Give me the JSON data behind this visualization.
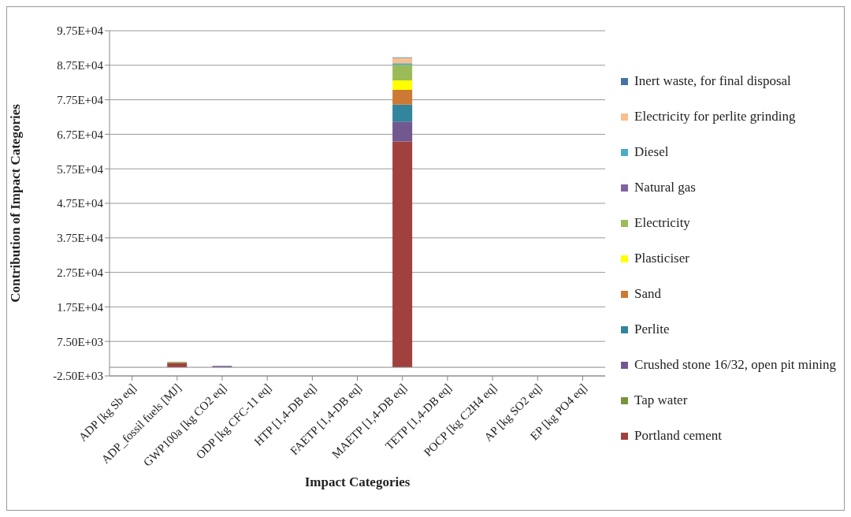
{
  "chart_data": {
    "type": "bar",
    "stacked": true,
    "xlabel": "Impact Categories",
    "ylabel": "Contribution of Impact Categories",
    "categories": [
      "ADP [kg Sb eq]",
      "ADP_fossil fuels [MJ]",
      "GWP100a [kg CO2 eq]",
      "ODP [kg CFC-11 eq]",
      "HTP [1,4-DB eq]",
      "FAETP [1,4-DB eq]",
      "MAETP [1,4-DB eq]",
      "TETP [1,4-DB eq]",
      "POCP [kg C2H4 eq]",
      "AP [kg SO2 eq]",
      "EP [kg PO4 eq]"
    ],
    "ylim": [
      -2500,
      97500
    ],
    "yticks": [
      {
        "value": -2500,
        "label": "-2.50E+03"
      },
      {
        "value": 7500,
        "label": "7.50E+03"
      },
      {
        "value": 17500,
        "label": "1.75E+04"
      },
      {
        "value": 27500,
        "label": "2.75E+04"
      },
      {
        "value": 37500,
        "label": "3.75E+04"
      },
      {
        "value": 47500,
        "label": "4.75E+04"
      },
      {
        "value": 57500,
        "label": "5.75E+04"
      },
      {
        "value": 67500,
        "label": "6.75E+04"
      },
      {
        "value": 77500,
        "label": "7.75E+04"
      },
      {
        "value": 87500,
        "label": "8.75E+04"
      },
      {
        "value": 97500,
        "label": "9.75E+04"
      }
    ],
    "grid": "y",
    "legend": "right",
    "series": [
      {
        "name": "Portland cement",
        "color": "#a0413e",
        "values": [
          0,
          1300,
          0,
          0,
          0,
          0,
          65400,
          0,
          0,
          0,
          0
        ]
      },
      {
        "name": "Tap water",
        "color": "#77933c",
        "values": [
          0,
          0,
          0,
          0,
          0,
          0,
          0,
          0,
          0,
          0,
          0
        ]
      },
      {
        "name": "Crushed stone 16/32, open pit mining",
        "color": "#71588f",
        "values": [
          0,
          0,
          400,
          0,
          0,
          0,
          5800,
          0,
          0,
          0,
          0
        ]
      },
      {
        "name": "Perlite",
        "color": "#31859c",
        "values": [
          0,
          0,
          0,
          0,
          0,
          0,
          4900,
          0,
          0,
          0,
          0
        ]
      },
      {
        "name": "Sand",
        "color": "#cc7a33",
        "values": [
          0,
          0,
          0,
          0,
          0,
          0,
          4300,
          0,
          0,
          0,
          0
        ]
      },
      {
        "name": "Plasticiser",
        "color": "#ffff00",
        "values": [
          0,
          0,
          0,
          0,
          0,
          0,
          2700,
          0,
          0,
          0,
          0
        ]
      },
      {
        "name": "Electricity",
        "color": "#9bbb59",
        "values": [
          0,
          300,
          0,
          0,
          0,
          0,
          4500,
          0,
          0,
          0,
          0
        ]
      },
      {
        "name": "Natural gas",
        "color": "#8064a2",
        "values": [
          0,
          0,
          0,
          0,
          0,
          0,
          0,
          0,
          0,
          0,
          0
        ]
      },
      {
        "name": "Diesel",
        "color": "#4bacc6",
        "values": [
          0,
          0,
          0,
          0,
          0,
          0,
          500,
          0,
          0,
          0,
          0
        ]
      },
      {
        "name": "Electricity for perlite grinding",
        "color": "#f9be8f",
        "values": [
          0,
          0,
          0,
          0,
          0,
          0,
          1500,
          0,
          0,
          0,
          0
        ]
      },
      {
        "name": "Inert waste, for final disposal",
        "color": "#4572a7",
        "values": [
          0,
          0,
          0,
          0,
          0,
          0,
          200,
          0,
          0,
          0,
          0
        ]
      }
    ]
  }
}
